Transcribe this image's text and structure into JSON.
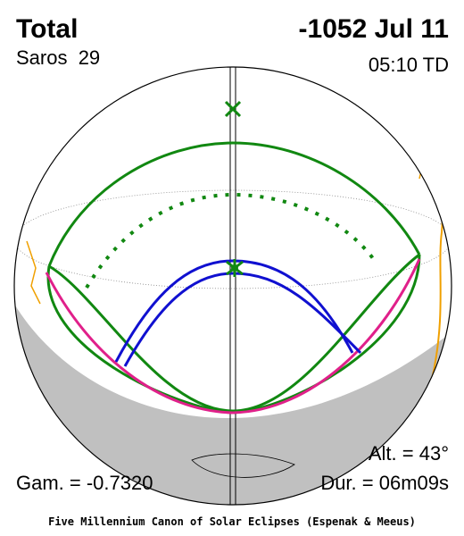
{
  "header": {
    "type": "Total",
    "date": "-1052 Jul 11",
    "saros": "Saros  29",
    "time": "05:10 TD"
  },
  "stats": {
    "altitude": "Alt. = 43°",
    "gamma": "Gam. = -0.7320",
    "duration": "Dur. = 06m09s"
  },
  "footer": "Five Millennium Canon of Solar Eclipses (Espenak & Meeus)"
}
